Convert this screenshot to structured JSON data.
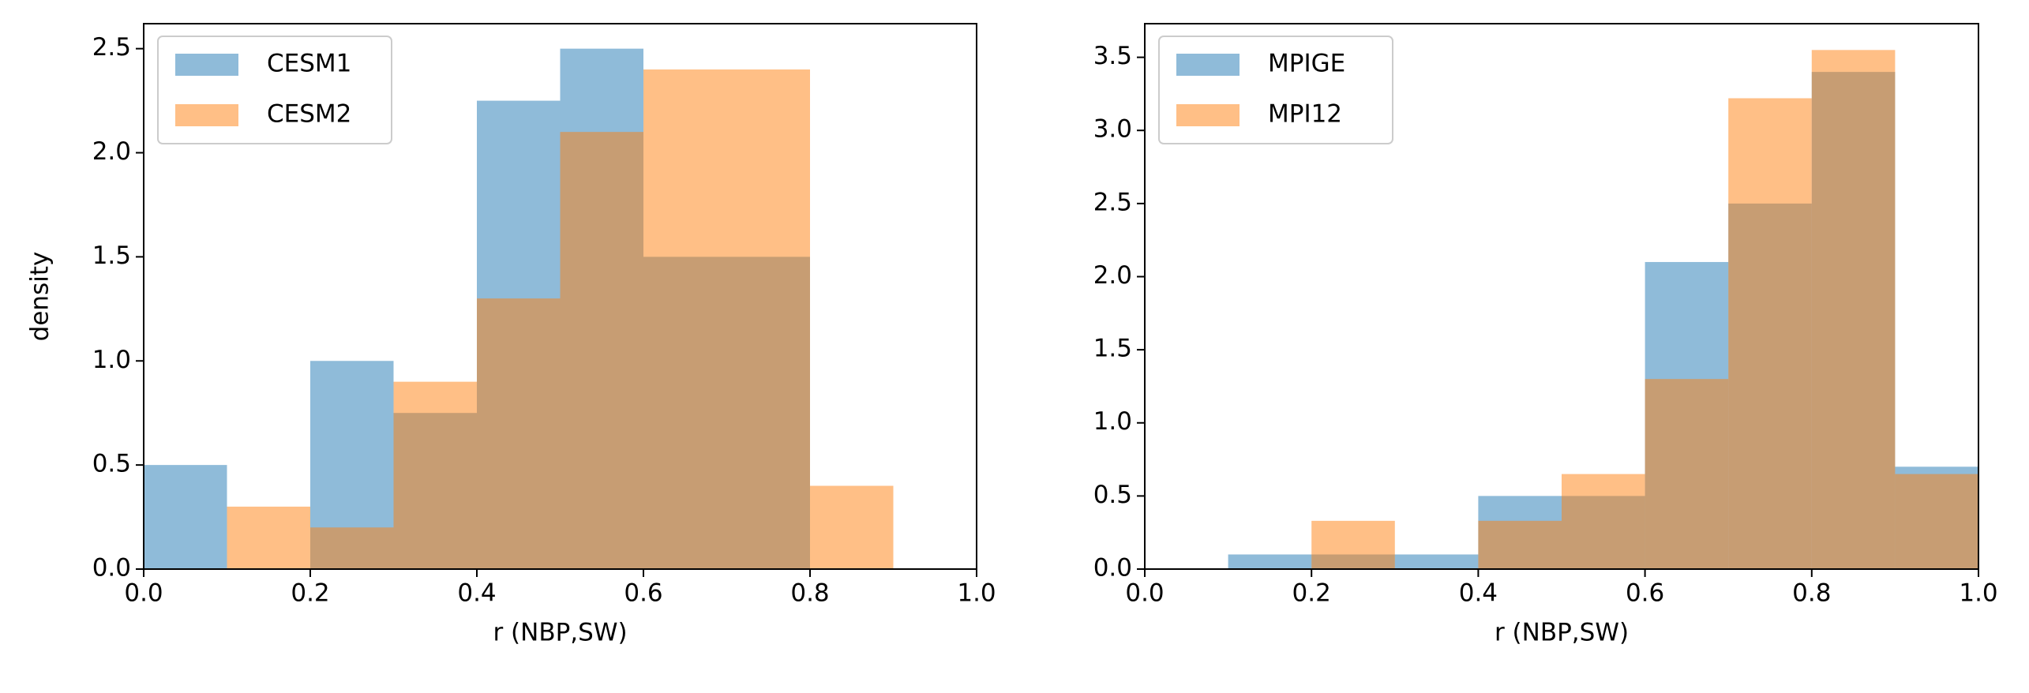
{
  "chart_data": [
    {
      "type": "histogram",
      "xlabel": "r (NBP,SW)",
      "ylabel": "density",
      "bins": [
        0.0,
        0.1,
        0.2,
        0.3,
        0.4,
        0.5,
        0.6,
        0.7,
        0.8,
        0.9
      ],
      "series": [
        {
          "name": "CESM1",
          "color": "#1f77b4",
          "values": [
            0.5,
            0,
            1.0,
            0.75,
            2.25,
            2.5,
            1.5,
            1.5,
            0
          ]
        },
        {
          "name": "CESM2",
          "color": "#ff7f0e",
          "values": [
            0,
            0.3,
            0.2,
            0.9,
            1.3,
            2.1,
            2.4,
            2.4,
            0.4
          ]
        }
      ],
      "xlim": [
        0,
        1
      ],
      "ylim": [
        0,
        2.62
      ],
      "xticks": [
        {
          "value": 0,
          "label": "0.0"
        },
        {
          "value": 0.2,
          "label": "0.2"
        },
        {
          "value": 0.4,
          "label": "0.4"
        },
        {
          "value": 0.6,
          "label": "0.6"
        },
        {
          "value": 0.8,
          "label": "0.8"
        },
        {
          "value": 1,
          "label": "1.0"
        }
      ],
      "yticks": [
        {
          "value": 0,
          "label": "0.0"
        },
        {
          "value": 0.5,
          "label": "0.5"
        },
        {
          "value": 1,
          "label": "1.0"
        },
        {
          "value": 1.5,
          "label": "1.5"
        },
        {
          "value": 2,
          "label": "2.0"
        },
        {
          "value": 2.5,
          "label": "2.5"
        }
      ],
      "legend": "upper left",
      "alpha": 0.5
    },
    {
      "type": "histogram",
      "xlabel": "r (NBP,SW)",
      "bins": [
        0.1,
        0.2,
        0.3,
        0.4,
        0.5,
        0.6,
        0.7,
        0.8,
        0.9,
        1.0
      ],
      "series": [
        {
          "name": "MPIGE",
          "color": "#1f77b4",
          "values": [
            0.1,
            0.1,
            0.1,
            0.5,
            0.5,
            2.1,
            2.5,
            3.4,
            0.7
          ]
        },
        {
          "name": "MPI12",
          "color": "#ff7f0e",
          "values": [
            0,
            0.33,
            0,
            0.33,
            0.65,
            1.3,
            3.22,
            3.55,
            0.65
          ]
        }
      ],
      "xlim": [
        0,
        1
      ],
      "ylim": [
        0,
        3.73
      ],
      "xticks": [
        {
          "value": 0,
          "label": "0.0"
        },
        {
          "value": 0.2,
          "label": "0.2"
        },
        {
          "value": 0.4,
          "label": "0.4"
        },
        {
          "value": 0.6,
          "label": "0.6"
        },
        {
          "value": 0.8,
          "label": "0.8"
        },
        {
          "value": 1,
          "label": "1.0"
        }
      ],
      "yticks": [
        {
          "value": 0,
          "label": "0.0"
        },
        {
          "value": 0.5,
          "label": "0.5"
        },
        {
          "value": 1,
          "label": "1.0"
        },
        {
          "value": 1.5,
          "label": "1.5"
        },
        {
          "value": 2,
          "label": "2.0"
        },
        {
          "value": 2.5,
          "label": "2.5"
        },
        {
          "value": 3,
          "label": "3.0"
        },
        {
          "value": 3.5,
          "label": "3.5"
        }
      ],
      "legend": "upper left",
      "alpha": 0.5
    }
  ]
}
